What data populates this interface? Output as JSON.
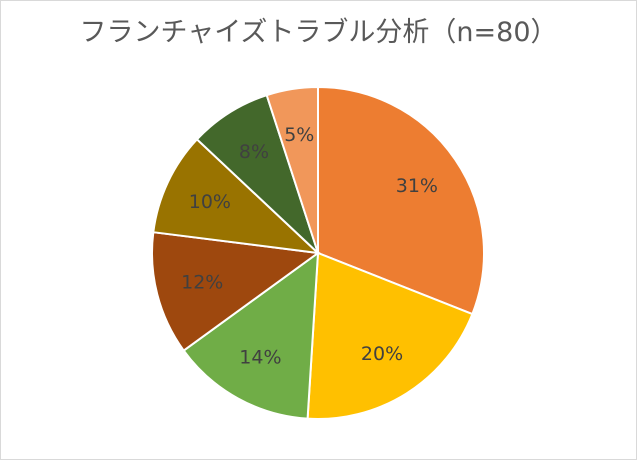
{
  "chart_data": {
    "type": "pie",
    "title": "フランチャイズトラブル分析（n=80）",
    "slices": [
      {
        "label": "31%",
        "value": 31,
        "color": "#ED7D31"
      },
      {
        "label": "20%",
        "value": 20,
        "color": "#FFC000"
      },
      {
        "label": "14%",
        "value": 14,
        "color": "#70AD47"
      },
      {
        "label": "12%",
        "value": 12,
        "color": "#9E480E"
      },
      {
        "label": "10%",
        "value": 10,
        "color": "#997300"
      },
      {
        "label": "8%",
        "value": 8,
        "color": "#43682B"
      },
      {
        "label": "5%",
        "value": 5,
        "color": "#F1975A"
      }
    ],
    "legend": false
  }
}
